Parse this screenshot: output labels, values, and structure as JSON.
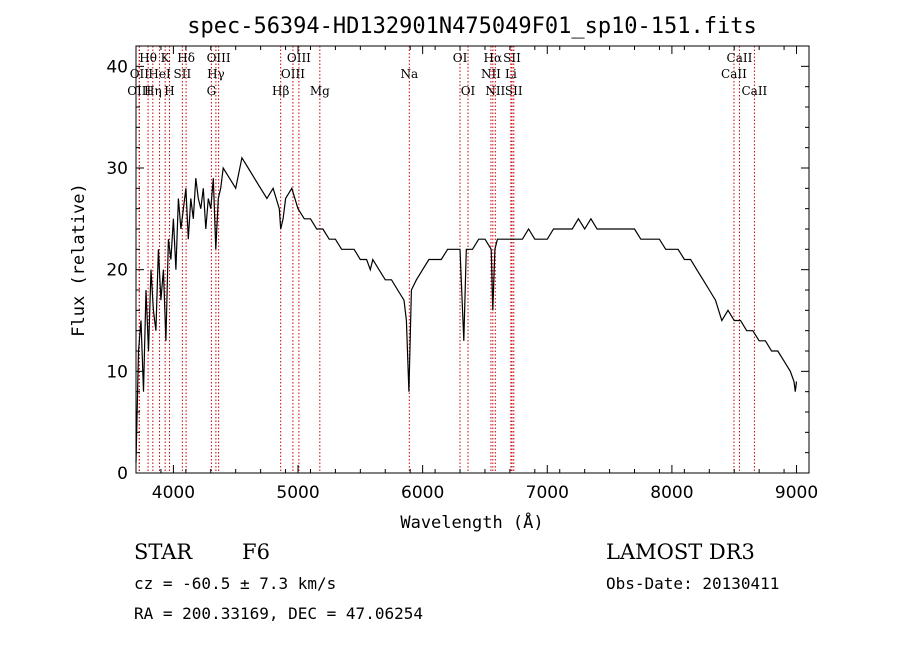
{
  "chart_data": {
    "type": "line",
    "title": "spec-56394-HD132901N475049F01_sp10-151.fits",
    "xlabel": "Wavelength (Å)",
    "ylabel": "Flux (relative)",
    "xlim": [
      3700,
      9100
    ],
    "ylim": [
      0,
      42
    ],
    "xticks": [
      4000,
      5000,
      6000,
      7000,
      8000,
      9000
    ],
    "yticks": [
      0,
      10,
      20,
      30,
      40
    ],
    "grid": false,
    "series": [
      {
        "color": "#000000",
        "x": [
          3700,
          3720,
          3740,
          3760,
          3780,
          3800,
          3820,
          3840,
          3860,
          3880,
          3900,
          3920,
          3940,
          3960,
          3980,
          4000,
          4020,
          4040,
          4060,
          4080,
          4100,
          4120,
          4140,
          4160,
          4180,
          4200,
          4220,
          4240,
          4260,
          4280,
          4300,
          4320,
          4340,
          4360,
          4380,
          4400,
          4450,
          4500,
          4550,
          4600,
          4650,
          4700,
          4750,
          4800,
          4850,
          4861,
          4880,
          4900,
          4950,
          5000,
          5050,
          5100,
          5150,
          5200,
          5250,
          5300,
          5350,
          5400,
          5450,
          5500,
          5550,
          5580,
          5600,
          5650,
          5700,
          5750,
          5800,
          5850,
          5870,
          5890,
          5910,
          5950,
          6000,
          6050,
          6100,
          6150,
          6200,
          6250,
          6300,
          6330,
          6350,
          6400,
          6450,
          6500,
          6550,
          6563,
          6580,
          6600,
          6650,
          6700,
          6750,
          6800,
          6850,
          6900,
          6950,
          7000,
          7050,
          7100,
          7150,
          7200,
          7250,
          7300,
          7350,
          7400,
          7450,
          7500,
          7550,
          7600,
          7650,
          7700,
          7750,
          7800,
          7850,
          7900,
          7950,
          8000,
          8050,
          8100,
          8150,
          8200,
          8250,
          8300,
          8350,
          8400,
          8450,
          8500,
          8550,
          8600,
          8650,
          8700,
          8750,
          8800,
          8850,
          8900,
          8950,
          8980,
          8990,
          9000
        ],
        "values": [
          1,
          12,
          15,
          8,
          18,
          12,
          20,
          16,
          14,
          22,
          17,
          20,
          13,
          23,
          21,
          25,
          20,
          27,
          24,
          26,
          28,
          23,
          27,
          25,
          29,
          27,
          26,
          28,
          24,
          27,
          26,
          29,
          22,
          27,
          28,
          30,
          29,
          28,
          31,
          30,
          29,
          28,
          27,
          28,
          26,
          24,
          25,
          27,
          28,
          26,
          25,
          25,
          24,
          24,
          23,
          23,
          22,
          22,
          22,
          21,
          21,
          20,
          21,
          20,
          19,
          19,
          18,
          17,
          15,
          8,
          18,
          19,
          20,
          21,
          21,
          21,
          22,
          22,
          22,
          13,
          22,
          22,
          23,
          23,
          22,
          16,
          22,
          23,
          23,
          23,
          23,
          23,
          24,
          23,
          23,
          23,
          24,
          24,
          24,
          24,
          25,
          24,
          25,
          24,
          24,
          24,
          24,
          24,
          24,
          24,
          23,
          23,
          23,
          23,
          22,
          22,
          22,
          21,
          21,
          20,
          19,
          18,
          17,
          15,
          16,
          15,
          15,
          14,
          14,
          13,
          13,
          12,
          12,
          11,
          10,
          9,
          8,
          9
        ]
      }
    ],
    "annotations": [
      {
        "label": "Hθ",
        "x": 3797,
        "row": 1
      },
      {
        "label": "OII",
        "x": 3727,
        "row": 2
      },
      {
        "label": "OIII",
        "x": 3726,
        "row": 3
      },
      {
        "label": "K",
        "x": 3934,
        "row": 1
      },
      {
        "label": "HeI",
        "x": 3889,
        "row": 2
      },
      {
        "label": "Hη",
        "x": 3835,
        "row": 3
      },
      {
        "label": "Hδ",
        "x": 4102,
        "row": 1
      },
      {
        "label": "SII",
        "x": 4072,
        "row": 2
      },
      {
        "label": "H",
        "x": 3969,
        "row": 3
      },
      {
        "label": "OIII",
        "x": 4363,
        "row": 1
      },
      {
        "label": "Hγ",
        "x": 4341,
        "row": 2
      },
      {
        "label": "G",
        "x": 4305,
        "row": 3
      },
      {
        "label": "OIII",
        "x": 5007,
        "row": 1
      },
      {
        "label": "OIII",
        "x": 4959,
        "row": 2
      },
      {
        "label": "Hβ",
        "x": 4861,
        "row": 3
      },
      {
        "label": "Mg",
        "x": 5175,
        "row": 3
      },
      {
        "label": "Na",
        "x": 5893,
        "row": 2
      },
      {
        "label": "OI",
        "x": 6300,
        "row": 1
      },
      {
        "label": "OI",
        "x": 6364,
        "row": 3
      },
      {
        "label": "Hα",
        "x": 6563,
        "row": 1
      },
      {
        "label": "SII",
        "x": 6717,
        "row": 1
      },
      {
        "label": "NII",
        "x": 6548,
        "row": 2
      },
      {
        "label": "Li",
        "x": 6708,
        "row": 2
      },
      {
        "label": "NII",
        "x": 6583,
        "row": 3
      },
      {
        "label": "SII",
        "x": 6731,
        "row": 3
      },
      {
        "label": "CaII",
        "x": 8542,
        "row": 1
      },
      {
        "label": "CaII",
        "x": 8498,
        "row": 2
      },
      {
        "label": "CaII",
        "x": 8662,
        "row": 3
      }
    ],
    "line_color": "#cc0000"
  },
  "info": {
    "class_label": "STAR",
    "subclass_label": "F6",
    "survey": "LAMOST DR3",
    "redshift": "cz = -60.5 ± 7.3 km/s",
    "obs_date": "Obs-Date: 20130411",
    "coords": "RA = 200.33169, DEC =  47.06254"
  }
}
